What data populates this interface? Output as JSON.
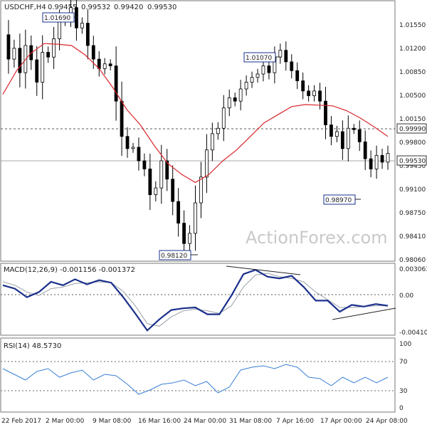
{
  "header": {
    "symbol": "USDCHF,H4",
    "open": "0.99455",
    "high": "0.99532",
    "low": "0.99420",
    "close": "0.99530"
  },
  "watermark": "ActionForex.com",
  "colors": {
    "candle": "#000000",
    "ma": "#d9262c",
    "macd": "#1a2f8c",
    "signal": "#9aa0a8",
    "rsi": "#3a7fd5",
    "frame": "#777777",
    "level": "#aaaaaa"
  },
  "chart_data": [
    {
      "type": "candlestick",
      "panel": "price",
      "ylim": [
        0.9795,
        1.0175
      ],
      "y_ticks": [
        "1.01550",
        "1.01200",
        "1.00850",
        "1.00500",
        "1.00150",
        "0.99800",
        "0.99450",
        "0.99100",
        "0.98750",
        "0.98410",
        "0.98060"
      ],
      "x_ticks": [
        "22 Feb 2017",
        "2 Mar 00:00",
        "9 Mar 08:00",
        "16 Mar 16:00",
        "24 Mar 00:00",
        "31 Mar 08:00",
        "7 Apr 16:00",
        "17 Apr 00:00",
        "24 Apr 08:00"
      ],
      "annotations": [
        {
          "text": "1.01690",
          "value": 1.0169
        },
        {
          "text": "1.01070",
          "value": 1.0107
        },
        {
          "text": "0.98970",
          "value": 0.9897
        },
        {
          "text": "0.98120",
          "value": 0.9812
        }
      ],
      "levels": [
        {
          "label": "0.99990",
          "value": 0.9999,
          "style": "dashed"
        },
        {
          "label": "0.99530",
          "value": 0.9953,
          "style": "solid"
        }
      ],
      "series": [
        {
          "name": "price (close path)",
          "values": [
            1.0128,
            1.0092,
            1.0108,
            1.0072,
            1.0112,
            1.0091,
            1.0058,
            1.0102,
            1.0095,
            1.0122,
            1.0148,
            1.0152,
            1.0168,
            1.0138,
            1.0145,
            1.0112,
            1.0092,
            1.0078,
            1.0085,
            1.0082,
            1.003,
            0.9978,
            0.996,
            0.9962,
            0.9942,
            0.993,
            0.9892,
            0.9902,
            0.9942,
            0.9915,
            0.9882,
            0.985,
            0.982,
            0.9835,
            0.988,
            0.9918,
            0.9958,
            0.9982,
            0.999,
            1.002,
            1.0035,
            1.003,
            1.0048,
            1.0058,
            1.0065,
            1.007,
            1.0082,
            1.0072,
            1.0095,
            1.0105,
            1.0088,
            1.0075,
            1.006,
            1.0045,
            1.0038,
            1.0045,
            1.003,
            0.9995,
            0.9978,
            0.9985,
            0.996,
            0.999,
            0.9988,
            0.997,
            0.9945,
            0.993,
            0.995,
            0.994,
            0.9953
          ]
        },
        {
          "name": "MA",
          "values": [
            1.004,
            1.0075,
            1.01,
            1.0115,
            1.0114,
            1.0112,
            1.0098,
            1.0078,
            1.005,
            1.0018,
            0.9995,
            0.9965,
            0.9938,
            0.9922,
            0.991,
            0.9922,
            0.9942,
            0.9958,
            0.9978,
            0.9998,
            1.001,
            1.0022,
            1.0025,
            1.0024,
            1.0023,
            1.0016,
            1.0005,
            0.9992,
            0.9978
          ]
        }
      ]
    },
    {
      "type": "line",
      "panel": "macd",
      "label": "MACD(12,26,9) -0.001156 -0.001372",
      "ylim": [
        -0.0044,
        0.0036
      ],
      "y_ticks": [
        "0.003063",
        "0.00",
        "-0.004104"
      ],
      "series": [
        {
          "name": "MACD",
          "values": [
            0.0012,
            0.0008,
            -0.0002,
            0.0004,
            0.0016,
            0.0012,
            0.0019,
            0.0013,
            0.0018,
            0.0015,
            -0.0002,
            -0.0021,
            -0.0041,
            -0.0028,
            -0.0017,
            -0.0015,
            -0.0014,
            -0.0022,
            -0.0022,
            0.0,
            0.0025,
            0.003,
            0.0022,
            0.002,
            0.0023,
            0.001,
            -0.0006,
            -0.0006,
            -0.0019,
            -0.0011,
            -0.0013,
            -0.001,
            -0.0012
          ]
        },
        {
          "name": "Signal",
          "values": [
            0.0016,
            0.0012,
            0.0004,
            0.0,
            0.0008,
            0.001,
            0.0014,
            0.0015,
            0.0016,
            0.0015,
            0.0005,
            -0.0012,
            -0.0033,
            -0.0036,
            -0.0025,
            -0.0018,
            -0.0016,
            -0.0018,
            -0.0021,
            -0.0012,
            0.001,
            0.0024,
            0.0026,
            0.0022,
            0.002,
            0.0016,
            0.0004,
            -0.0005,
            -0.0014,
            -0.0014,
            -0.0013,
            -0.0012,
            -0.0012
          ]
        }
      ]
    },
    {
      "type": "line",
      "panel": "rsi",
      "label": "RSI(14) 48.5730",
      "ylim": [
        0,
        100
      ],
      "y_ticks": [
        "100",
        "70",
        "30",
        "0"
      ],
      "series": [
        {
          "name": "RSI",
          "values": [
            60,
            52,
            44,
            56,
            60,
            48,
            54,
            58,
            44,
            52,
            50,
            38,
            24,
            30,
            38,
            40,
            44,
            36,
            42,
            26,
            34,
            58,
            62,
            64,
            60,
            66,
            62,
            48,
            46,
            36,
            48,
            40,
            48,
            40,
            48
          ]
        }
      ]
    }
  ]
}
